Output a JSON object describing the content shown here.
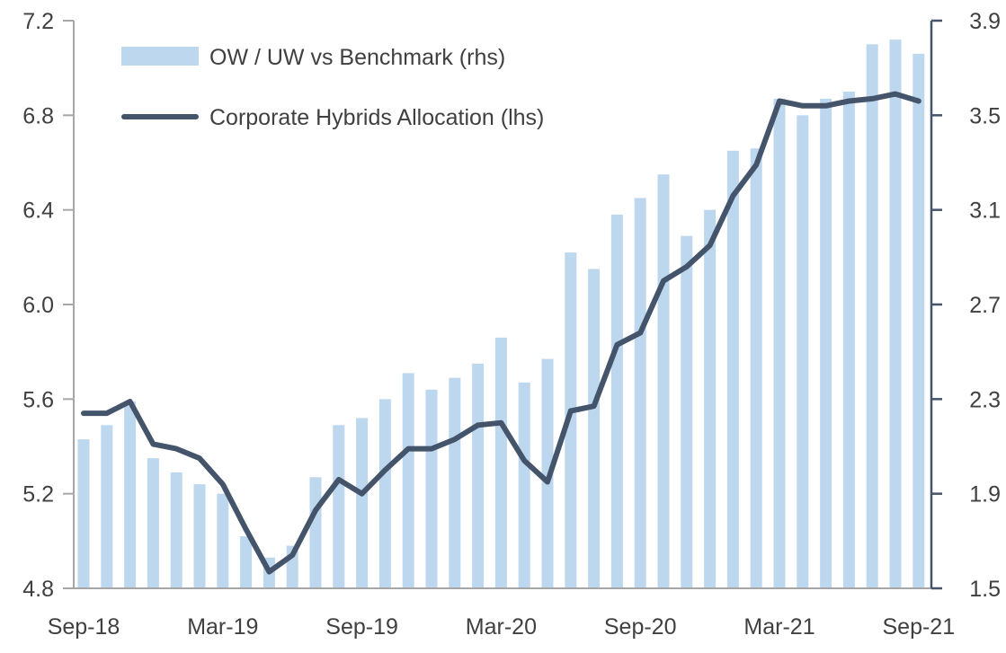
{
  "chart_data": {
    "type": "bar+line",
    "title": "",
    "categories": [
      "Sep-18",
      "Oct-18",
      "Nov-18",
      "Dec-18",
      "Jan-19",
      "Feb-19",
      "Mar-19",
      "Apr-19",
      "May-19",
      "Jun-19",
      "Jul-19",
      "Aug-19",
      "Sep-19",
      "Oct-19",
      "Nov-19",
      "Dec-19",
      "Jan-20",
      "Feb-20",
      "Mar-20",
      "Apr-20",
      "May-20",
      "Jun-20",
      "Jul-20",
      "Aug-20",
      "Sep-20",
      "Oct-20",
      "Nov-20",
      "Dec-20",
      "Jan-21",
      "Feb-21",
      "Mar-21",
      "Apr-21",
      "May-21",
      "Jun-21",
      "Jul-21",
      "Aug-21",
      "Sep-21"
    ],
    "x_tick_labels": [
      "Sep-18",
      "Mar-19",
      "Sep-19",
      "Mar-20",
      "Sep-20",
      "Mar-21",
      "Sep-21"
    ],
    "series": [
      {
        "name": "OW / UW vs Benchmark (rhs)",
        "type": "bar",
        "axis": "right",
        "color": "#BDD7EE",
        "values": [
          2.13,
          2.19,
          2.29,
          2.05,
          1.99,
          1.94,
          1.9,
          1.72,
          1.63,
          1.68,
          1.97,
          2.19,
          2.22,
          2.3,
          2.41,
          2.34,
          2.39,
          2.45,
          2.56,
          2.37,
          2.47,
          2.92,
          2.85,
          3.08,
          3.15,
          3.25,
          2.99,
          3.1,
          3.35,
          3.36,
          3.57,
          3.5,
          3.57,
          3.6,
          3.8,
          3.82,
          3.76
        ]
      },
      {
        "name": "Corporate Hybrids Allocation (lhs)",
        "type": "line",
        "axis": "left",
        "color": "#44546A",
        "values": [
          5.54,
          5.54,
          5.59,
          5.41,
          5.39,
          5.35,
          5.24,
          5.05,
          4.87,
          4.94,
          5.13,
          5.26,
          5.2,
          5.3,
          5.39,
          5.39,
          5.43,
          5.49,
          5.5,
          5.34,
          5.25,
          5.55,
          5.57,
          5.83,
          5.88,
          6.1,
          6.16,
          6.25,
          6.46,
          6.59,
          6.86,
          6.84,
          6.84,
          6.86,
          6.87,
          6.89,
          6.86
        ]
      }
    ],
    "y_left": {
      "ylim": [
        4.8,
        7.2
      ],
      "ticks": [
        "4.8",
        "5.2",
        "5.6",
        "6.0",
        "6.4",
        "6.8",
        "7.2"
      ]
    },
    "y_right": {
      "ylim": [
        1.5,
        3.9
      ],
      "ticks": [
        "1.5",
        "1.9",
        "2.3",
        "2.7",
        "3.1",
        "3.5",
        "3.9"
      ]
    },
    "xlabel": "",
    "ylabel": "",
    "grid": false,
    "legend_position": "top-left"
  }
}
